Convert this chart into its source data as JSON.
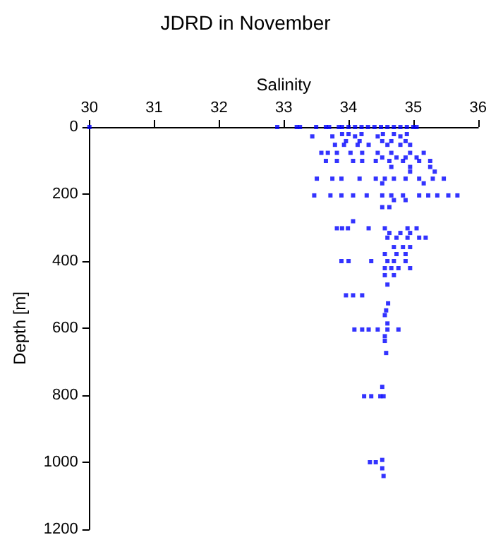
{
  "chart_data": {
    "type": "scatter",
    "title": "JDRD in November",
    "xlabel": "Salinity",
    "ylabel": "Depth [m]",
    "xlim": [
      30,
      36
    ],
    "xticks": [
      30,
      31,
      32,
      33,
      34,
      35,
      36
    ],
    "ylim": [
      1200,
      0
    ],
    "yticks": [
      0,
      200,
      400,
      600,
      800,
      1000,
      1200
    ],
    "grid": false,
    "marker": "square",
    "series": [
      {
        "color": "#0000ff",
        "x": [
          30.0,
          32.9,
          33.2,
          33.25,
          33.5,
          33.65,
          33.7,
          33.85,
          33.9,
          34.0,
          34.1,
          34.2,
          34.3,
          34.4,
          34.5,
          34.6,
          34.7,
          34.8,
          34.9,
          35.0,
          35.05,
          33.9,
          34.0,
          34.2,
          34.53,
          34.7,
          34.9,
          33.44,
          33.75,
          34.1,
          34.45,
          34.8,
          33.96,
          34.17,
          34.52,
          34.66,
          34.88,
          33.79,
          33.93,
          34.14,
          34.31,
          34.6,
          34.8,
          34.95,
          33.58,
          33.68,
          33.82,
          34.03,
          34.21,
          34.45,
          34.66,
          34.95,
          35.16,
          34.52,
          34.74,
          34.88,
          35.05,
          33.65,
          33.82,
          34.07,
          34.21,
          34.42,
          34.63,
          34.84,
          35.09,
          35.26,
          34.66,
          34.95,
          35.26,
          34.95,
          35.33,
          33.51,
          33.75,
          33.89,
          34.17,
          34.42,
          34.56,
          34.7,
          34.88,
          35.09,
          35.3,
          35.47,
          34.52,
          35.16,
          33.47,
          33.72,
          33.89,
          34.07,
          34.28,
          34.52,
          34.66,
          34.84,
          35.09,
          35.23,
          35.37,
          35.54,
          35.68,
          34.7,
          34.88,
          34.52,
          34.63,
          34.07,
          33.82,
          33.9,
          33.99,
          34.31,
          34.56,
          34.91,
          35.05,
          34.63,
          34.8,
          34.95,
          34.6,
          34.74,
          34.91,
          35.09,
          35.19,
          34.7,
          34.84,
          34.95,
          34.56,
          34.74,
          34.88,
          33.89,
          34.0,
          34.35,
          34.6,
          34.7,
          34.88,
          34.56,
          34.66,
          34.77,
          34.95,
          34.56,
          34.7,
          34.6,
          33.96,
          34.07,
          34.21,
          34.61,
          34.58,
          34.56,
          34.6,
          34.09,
          34.21,
          34.31,
          34.45,
          34.6,
          34.77,
          34.56,
          34.56,
          34.58,
          34.52,
          34.24,
          34.35,
          34.49,
          34.54,
          34.52,
          34.33,
          34.42,
          34.52,
          34.54
        ],
        "values": [
          0,
          0,
          0,
          0,
          0,
          0,
          0,
          0,
          0,
          0,
          0,
          0,
          0,
          0,
          0,
          0,
          0,
          0,
          0,
          0,
          0,
          21,
          21,
          21,
          21,
          21,
          21,
          28,
          28,
          28,
          28,
          28,
          42,
          42,
          42,
          42,
          42,
          53,
          53,
          53,
          53,
          53,
          53,
          53,
          77,
          77,
          77,
          77,
          77,
          77,
          77,
          77,
          77,
          91,
          91,
          91,
          91,
          101,
          101,
          101,
          101,
          101,
          101,
          101,
          101,
          101,
          119,
          119,
          119,
          133,
          133,
          154,
          154,
          154,
          154,
          154,
          154,
          154,
          154,
          154,
          154,
          154,
          168,
          168,
          204,
          204,
          204,
          204,
          204,
          204,
          204,
          204,
          204,
          204,
          204,
          204,
          204,
          218,
          218,
          239,
          239,
          281,
          302,
          302,
          302,
          302,
          302,
          302,
          302,
          316,
          316,
          316,
          330,
          330,
          330,
          330,
          330,
          358,
          358,
          358,
          379,
          379,
          379,
          400,
          400,
          400,
          400,
          400,
          400,
          421,
          421,
          421,
          421,
          442,
          442,
          470,
          502,
          502,
          502,
          526,
          547,
          561,
          586,
          604,
          604,
          604,
          604,
          604,
          604,
          624,
          638,
          674,
          775,
          803,
          803,
          803,
          803,
          993,
          1000,
          1000,
          1018,
          1041
        ]
      }
    ]
  }
}
